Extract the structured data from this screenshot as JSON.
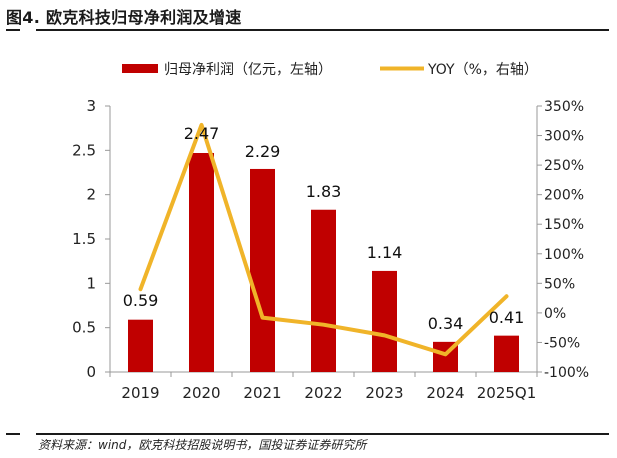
{
  "figure": {
    "title": "图4. 欧克科技归母净利润及增速",
    "source": "资料来源：wind，欧克科技招股说明书，国投证券证券研究所"
  },
  "chart_data": {
    "type": "bar",
    "categories": [
      "2019",
      "2020",
      "2021",
      "2022",
      "2023",
      "2024",
      "2025Q1"
    ],
    "series": [
      {
        "name": "归母净利润（亿元，左轴）",
        "type": "bar",
        "axis": "left",
        "color": "#c00000",
        "values": [
          0.59,
          2.47,
          2.29,
          1.83,
          1.14,
          0.34,
          0.41
        ],
        "labels": [
          "0.59",
          "2.47",
          "2.29",
          "1.83",
          "1.14",
          "0.34",
          "0.41"
        ]
      },
      {
        "name": "YOY（%，右轴）",
        "type": "line",
        "axis": "right",
        "color": "#f0b429",
        "values": [
          40,
          318,
          -8,
          -20,
          -38,
          -70,
          28
        ]
      }
    ],
    "left_axis": {
      "min": 0,
      "max": 3,
      "ticks": [
        "0",
        "0.5",
        "1",
        "1.5",
        "2",
        "2.5",
        "3"
      ]
    },
    "right_axis": {
      "min": -100,
      "max": 350,
      "ticks": [
        "-100%",
        "-50%",
        "0%",
        "50%",
        "100%",
        "150%",
        "200%",
        "250%",
        "300%",
        "350%"
      ]
    },
    "grid": false,
    "legend_position": "top"
  }
}
